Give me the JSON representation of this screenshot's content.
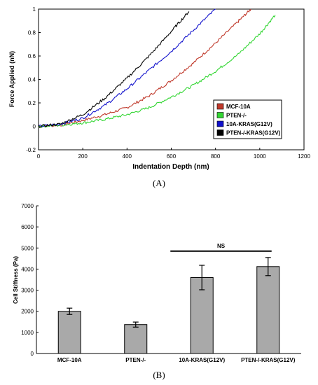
{
  "chart_data": [
    {
      "type": "line",
      "panel_label": "(A)",
      "xlabel": "Indentation Depth (nm)",
      "ylabel": "Force Applied (nN)",
      "xlim": [
        0,
        1200
      ],
      "ylim": [
        -0.2,
        1
      ],
      "xticks": [
        "0",
        "200",
        "400",
        "600",
        "800",
        "1000",
        "1200"
      ],
      "yticks": [
        "-0.2",
        "0",
        "0.2",
        "0.4",
        "0.6",
        "0.8",
        "1"
      ],
      "legend_position": "bottom-right",
      "series": [
        {
          "name": "MCF-10A",
          "color": "#c0392b",
          "x": [
            0,
            100,
            200,
            300,
            400,
            500,
            600,
            700,
            800,
            900,
            960
          ],
          "y": [
            0,
            0.01,
            0.05,
            0.1,
            0.16,
            0.26,
            0.39,
            0.54,
            0.71,
            0.89,
            1.0
          ]
        },
        {
          "name": "PTEN-/-",
          "color": "#33d633",
          "x": [
            0,
            100,
            200,
            300,
            400,
            500,
            600,
            700,
            800,
            900,
            1000,
            1070
          ],
          "y": [
            0,
            0.01,
            0.03,
            0.06,
            0.1,
            0.16,
            0.25,
            0.35,
            0.47,
            0.61,
            0.79,
            0.95
          ]
        },
        {
          "name": "10A-KRAS(G12V)",
          "color": "#1010cc",
          "x": [
            0,
            100,
            200,
            300,
            400,
            500,
            600,
            700,
            800
          ],
          "y": [
            0,
            0.02,
            0.07,
            0.18,
            0.32,
            0.48,
            0.64,
            0.82,
            1.0
          ]
        },
        {
          "name": "PTEN-/-KRAS(G12V)",
          "color": "#000000",
          "x": [
            0,
            100,
            200,
            300,
            400,
            500,
            600,
            680
          ],
          "y": [
            0,
            0.02,
            0.1,
            0.24,
            0.41,
            0.6,
            0.81,
            0.98
          ]
        }
      ]
    },
    {
      "type": "bar",
      "panel_label": "(B)",
      "ylabel": "Cell Stiffness (Pa)",
      "ylim": [
        0,
        7000
      ],
      "yticks": [
        "0",
        "1000",
        "2000",
        "3000",
        "4000",
        "5000",
        "6000",
        "7000"
      ],
      "categories": [
        "MCF-10A",
        "PTEN-/-",
        "10A-KRAS(G12V)",
        "PTEN-/-KRAS(G12V)"
      ],
      "values": [
        2000,
        1370,
        3600,
        4120
      ],
      "errors": [
        150,
        120,
        580,
        430
      ],
      "bar_color": "#a9a9a9",
      "annotation": {
        "text": "NS",
        "between": [
          2,
          3
        ],
        "y": 4850
      }
    }
  ]
}
